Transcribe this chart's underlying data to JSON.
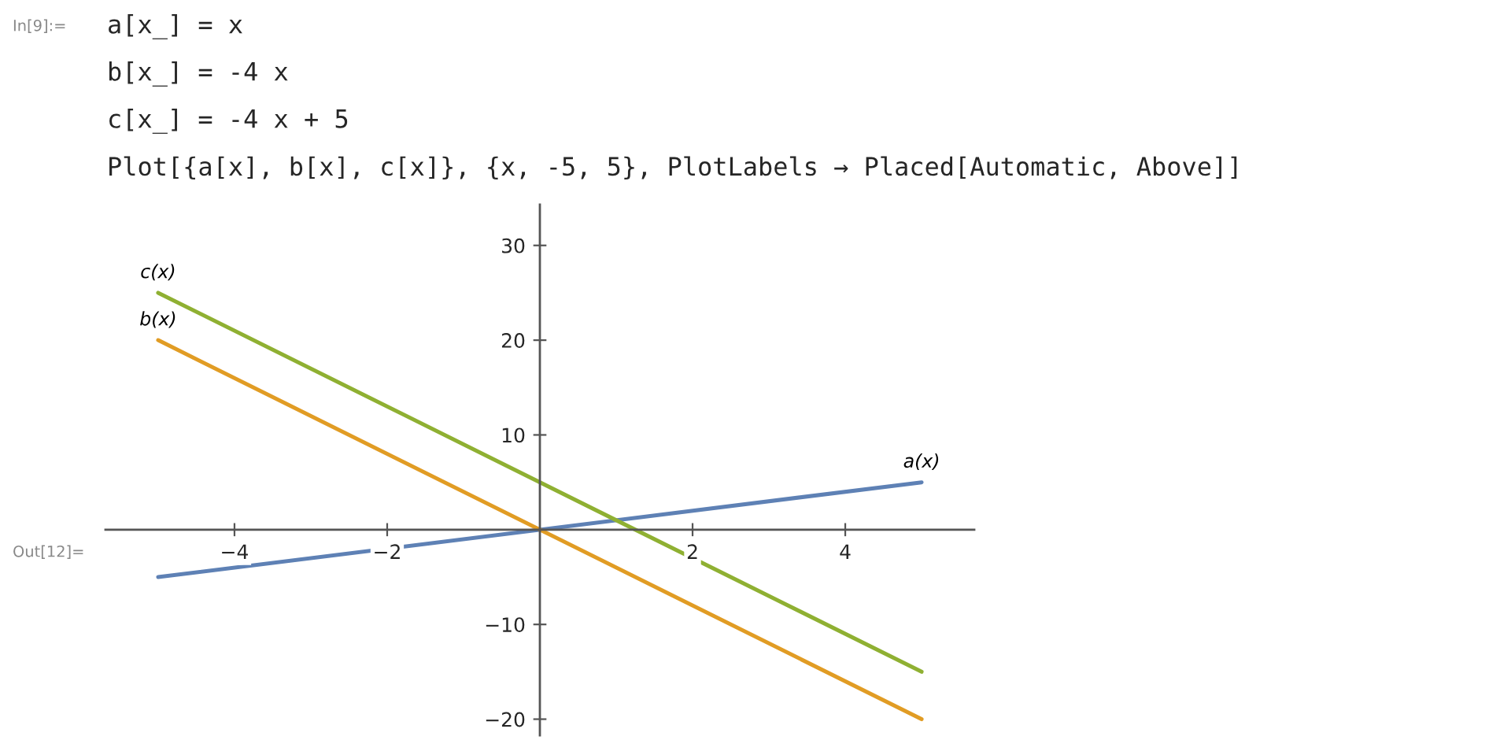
{
  "chart_data": {
    "type": "line",
    "x": [
      -5,
      5
    ],
    "series": [
      {
        "name": "a(x)",
        "color": "#5e81b5",
        "values": [
          -5,
          5
        ]
      },
      {
        "name": "b(x)",
        "color": "#e19c24",
        "values": [
          20,
          -20
        ]
      },
      {
        "name": "c(x)",
        "color": "#8fb032",
        "values": [
          25,
          -15
        ]
      }
    ],
    "xlim": [
      -5.69,
      5.69
    ],
    "ylim": [
      -21.7,
      34.3
    ],
    "xticks": [
      -4,
      -2,
      2,
      4
    ],
    "yticks": [
      -20,
      -10,
      10,
      20,
      30
    ],
    "grid": false,
    "legend": false,
    "marker": "none",
    "line_style": "solid",
    "annotations": [
      "In[9]:=",
      "a[x_] = x",
      "b[x_] = -4 x",
      "c[x_] = -4 x + 5",
      "Plot[{a[x], b[x], c[x]}, {x, -5, 5}, PlotLabels → Placed[Automatic, Above]]",
      "Out[12]="
    ]
  }
}
